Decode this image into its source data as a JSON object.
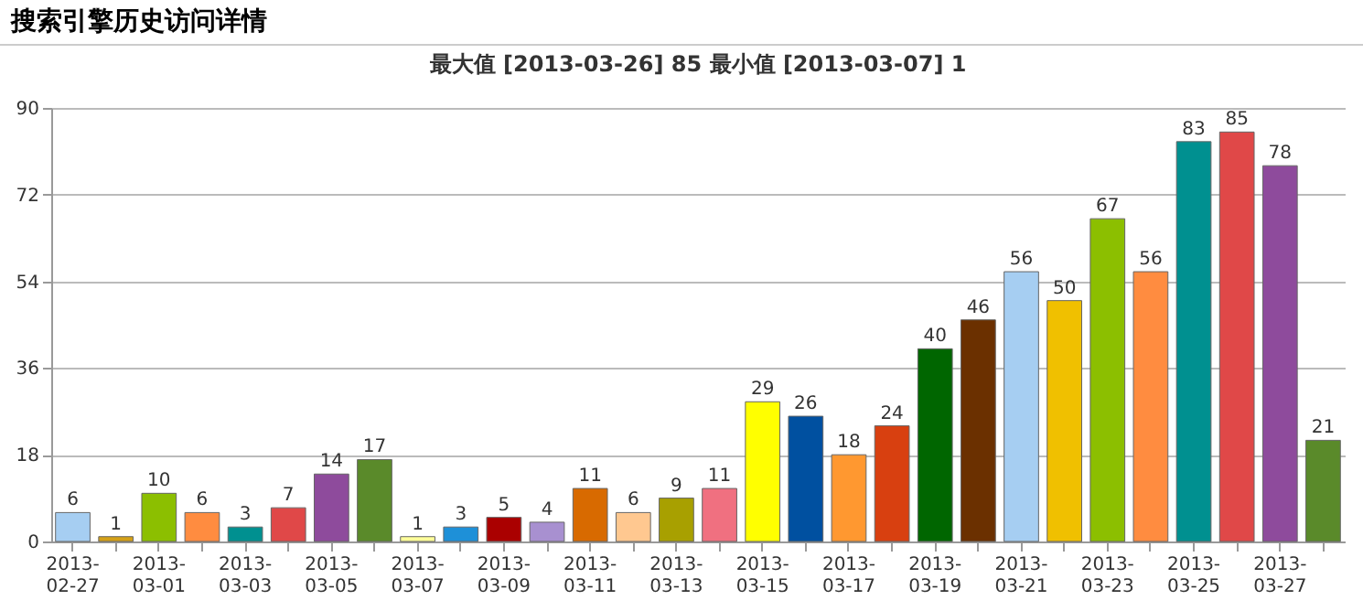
{
  "chart_data": {
    "type": "bar",
    "title": "搜索引擎历史访问详情",
    "subtitle": "最大值 [2013-03-26] 85   最小值 [2013-03-07] 1",
    "categories": [
      "2013-02-27",
      null,
      "2013-03-01",
      null,
      "2013-03-03",
      null,
      "2013-03-05",
      null,
      "2013-03-07",
      null,
      "2013-03-09",
      null,
      "2013-03-11",
      null,
      "2013-03-13",
      null,
      "2013-03-15",
      null,
      "2013-03-17",
      null,
      "2013-03-19",
      null,
      "2013-03-21",
      null,
      "2013-03-23",
      null,
      "2013-03-25",
      null,
      "2013-03-27",
      null
    ],
    "values": [
      6,
      1,
      10,
      6,
      3,
      7,
      14,
      17,
      1,
      3,
      5,
      4,
      11,
      6,
      9,
      11,
      29,
      26,
      18,
      24,
      40,
      46,
      56,
      50,
      67,
      56,
      83,
      85,
      78,
      21
    ],
    "colors": [
      "#a6cef2",
      "#d4a017",
      "#8cbf00",
      "#ff8c40",
      "#009090",
      "#e04848",
      "#8e4b9c",
      "#5a8a2a",
      "#ffff99",
      "#1e90d8",
      "#aa0000",
      "#a890d0",
      "#d86a00",
      "#ffc890",
      "#a8a000",
      "#f07080",
      "#ffff00",
      "#0050a0",
      "#ff9830",
      "#d84010",
      "#006600",
      "#6b3000",
      "#a6cef2",
      "#f0c000",
      "#8cbf00",
      "#ff8c40",
      "#009090",
      "#e04848",
      "#8e4b9c",
      "#5a8a2a"
    ],
    "ylim": [
      0,
      90
    ],
    "yticks": [
      0,
      18,
      36,
      54,
      72,
      90
    ],
    "grid": true,
    "data_labels": true
  }
}
